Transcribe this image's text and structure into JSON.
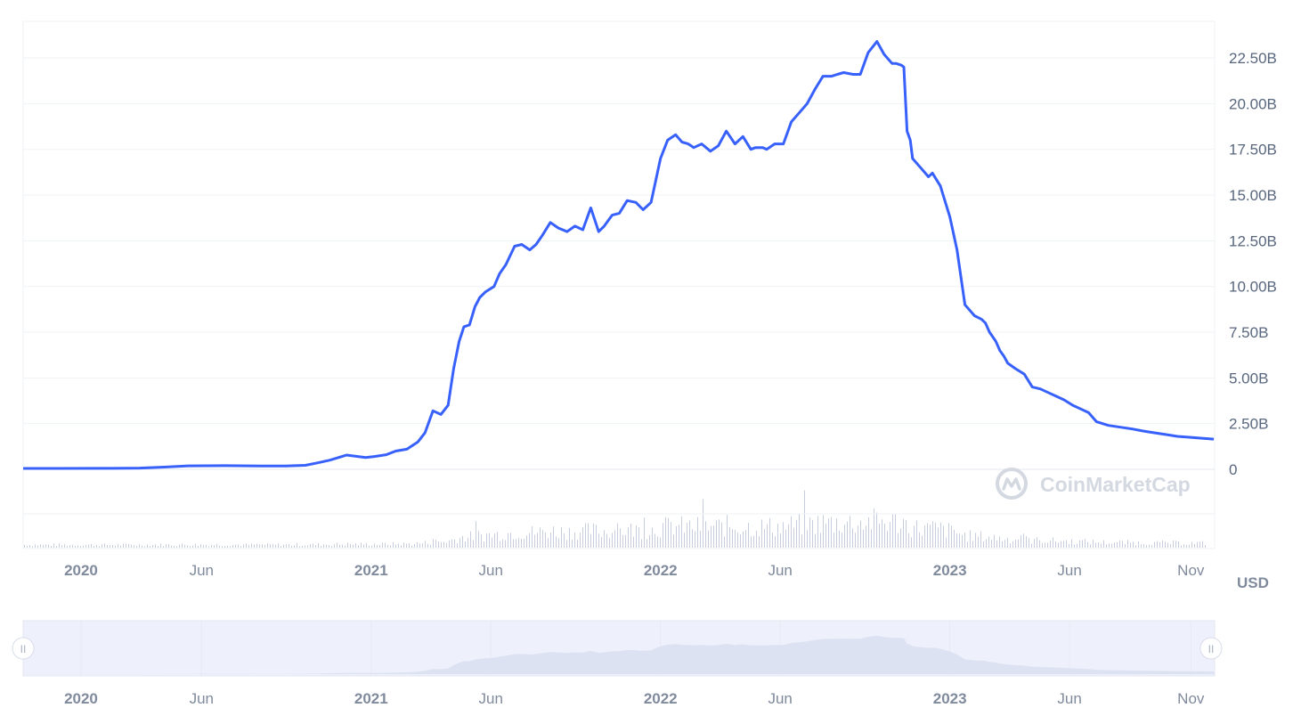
{
  "chart_data": {
    "type": "line",
    "ylabel": "",
    "xlabel": "",
    "currency": "USD",
    "ylim": [
      0,
      24500000000
    ],
    "y_ticks": [
      "0",
      "2.50B",
      "5.00B",
      "7.50B",
      "10.00B",
      "12.50B",
      "15.00B",
      "17.50B",
      "20.00B",
      "22.50B"
    ],
    "y_tick_values": [
      0,
      2500000000,
      5000000000,
      7500000000,
      10000000000,
      12500000000,
      15000000000,
      17500000000,
      20000000000,
      22500000000
    ],
    "x_ticks": [
      {
        "label": "2020",
        "date": "2020-01-01",
        "major": true
      },
      {
        "label": "Jun",
        "date": "2020-06-01",
        "major": false
      },
      {
        "label": "2021",
        "date": "2021-01-01",
        "major": true
      },
      {
        "label": "Jun",
        "date": "2021-06-01",
        "major": false
      },
      {
        "label": "2022",
        "date": "2022-01-01",
        "major": true
      },
      {
        "label": "Jun",
        "date": "2022-06-01",
        "major": false
      },
      {
        "label": "2023",
        "date": "2023-01-01",
        "major": true
      },
      {
        "label": "Jun",
        "date": "2023-06-01",
        "major": false
      },
      {
        "label": "Nov",
        "date": "2023-11-01",
        "major": false
      }
    ],
    "x_range": [
      "2019-10-20",
      "2023-12-01"
    ],
    "grid": true,
    "line_color": "#3861fb",
    "series": [
      {
        "x": [
          "2019-10-20",
          "2019-12-01",
          "2020-02-01",
          "2020-03-15",
          "2020-04-15",
          "2020-05-15",
          "2020-07-01",
          "2020-08-15",
          "2020-09-15",
          "2020-10-10",
          "2020-10-25",
          "2020-11-10",
          "2020-12-01",
          "2020-12-25",
          "2021-01-05",
          "2021-01-20",
          "2021-02-01",
          "2021-02-15",
          "2021-03-01",
          "2021-03-10",
          "2021-03-20",
          "2021-03-30",
          "2021-04-08",
          "2021-04-15",
          "2021-04-22",
          "2021-04-28",
          "2021-05-05",
          "2021-05-12",
          "2021-05-18",
          "2021-05-25",
          "2021-06-05",
          "2021-06-12",
          "2021-06-20",
          "2021-07-01",
          "2021-07-10",
          "2021-07-20",
          "2021-07-28",
          "2021-08-05",
          "2021-08-15",
          "2021-08-25",
          "2021-09-05",
          "2021-09-15",
          "2021-09-25",
          "2021-10-05",
          "2021-10-15",
          "2021-10-22",
          "2021-11-01",
          "2021-11-10",
          "2021-11-20",
          "2021-12-01",
          "2021-12-10",
          "2021-12-20",
          "2022-01-01",
          "2022-01-10",
          "2022-01-20",
          "2022-01-28",
          "2022-02-05",
          "2022-02-12",
          "2022-02-22",
          "2022-03-05",
          "2022-03-15",
          "2022-03-25",
          "2022-04-05",
          "2022-04-15",
          "2022-04-25",
          "2022-05-01",
          "2022-05-10",
          "2022-05-15",
          "2022-05-25",
          "2022-06-05",
          "2022-06-15",
          "2022-06-25",
          "2022-07-05",
          "2022-07-15",
          "2022-07-25",
          "2022-08-05",
          "2022-08-12",
          "2022-08-20",
          "2022-09-01",
          "2022-09-10",
          "2022-09-20",
          "2022-10-01",
          "2022-10-10",
          "2022-10-20",
          "2022-10-25",
          "2022-11-01",
          "2022-11-04",
          "2022-11-08",
          "2022-11-12",
          "2022-11-15",
          "2022-11-25",
          "2022-12-01",
          "2022-12-05",
          "2022-12-10",
          "2022-12-20",
          "2023-01-01",
          "2023-01-10",
          "2023-01-20",
          "2023-02-01",
          "2023-02-10",
          "2023-02-15",
          "2023-02-20",
          "2023-02-28",
          "2023-03-05",
          "2023-03-10",
          "2023-03-15",
          "2023-03-25",
          "2023-04-05",
          "2023-04-15",
          "2023-04-25",
          "2023-05-05",
          "2023-05-15",
          "2023-05-25",
          "2023-06-05",
          "2023-06-15",
          "2023-06-25",
          "2023-07-05",
          "2023-07-20",
          "2023-08-05",
          "2023-08-20",
          "2023-09-01",
          "2023-09-15",
          "2023-10-01",
          "2023-10-15",
          "2023-11-01",
          "2023-11-15",
          "2023-11-30"
        ],
        "y": [
          50000000,
          50000000,
          55000000,
          70000000,
          120000000,
          190000000,
          200000000,
          180000000,
          180000000,
          220000000,
          350000000,
          500000000,
          780000000,
          650000000,
          700000000,
          800000000,
          1000000000,
          1100000000,
          1500000000,
          2000000000,
          3200000000,
          3000000000,
          3500000000,
          5500000000,
          7000000000,
          7800000000,
          7900000000,
          8900000000,
          9400000000,
          9700000000,
          10000000000,
          10700000000,
          11200000000,
          12200000000,
          12300000000,
          12000000000,
          12300000000,
          12800000000,
          13500000000,
          13200000000,
          13000000000,
          13300000000,
          13100000000,
          14300000000,
          13000000000,
          13300000000,
          13900000000,
          14000000000,
          14700000000,
          14600000000,
          14200000000,
          14600000000,
          17000000000,
          18000000000,
          18300000000,
          17900000000,
          17800000000,
          17600000000,
          17800000000,
          17400000000,
          17700000000,
          18500000000,
          17800000000,
          18200000000,
          17500000000,
          17600000000,
          17600000000,
          17500000000,
          17800000000,
          17800000000,
          19000000000,
          19500000000,
          20000000000,
          20800000000,
          21500000000,
          21500000000,
          21600000000,
          21700000000,
          21600000000,
          21600000000,
          22800000000,
          23400000000,
          22700000000,
          22200000000,
          22200000000,
          22100000000,
          22000000000,
          18500000000,
          18000000000,
          17000000000,
          16500000000,
          16200000000,
          16000000000,
          16200000000,
          15500000000,
          13800000000,
          12000000000,
          9000000000,
          8400000000,
          8200000000,
          8000000000,
          7500000000,
          7000000000,
          6500000000,
          6200000000,
          5800000000,
          5500000000,
          5200000000,
          4500000000,
          4400000000,
          4200000000,
          4000000000,
          3800000000,
          3500000000,
          3300000000,
          3100000000,
          2600000000,
          2400000000,
          2300000000,
          2200000000,
          2100000000,
          2000000000,
          1900000000,
          1800000000,
          1750000000,
          1700000000,
          1650000000
        ]
      }
    ]
  },
  "navigator": {
    "x_ticks": [
      "2020",
      "Jun",
      "2021",
      "Jun",
      "2022",
      "Jun",
      "2023",
      "Jun",
      "Nov"
    ],
    "left_handle": "II",
    "right_handle": "II"
  },
  "watermark": {
    "text": "CoinMarketCap",
    "icon": "coinmarketcap-logo-icon"
  },
  "colors": {
    "line": "#3861fb",
    "volume": "#c6cddd",
    "grid": "#eff2f5",
    "navigator_fill": "#dde2f2",
    "navigator_band": "#eef1fb"
  }
}
